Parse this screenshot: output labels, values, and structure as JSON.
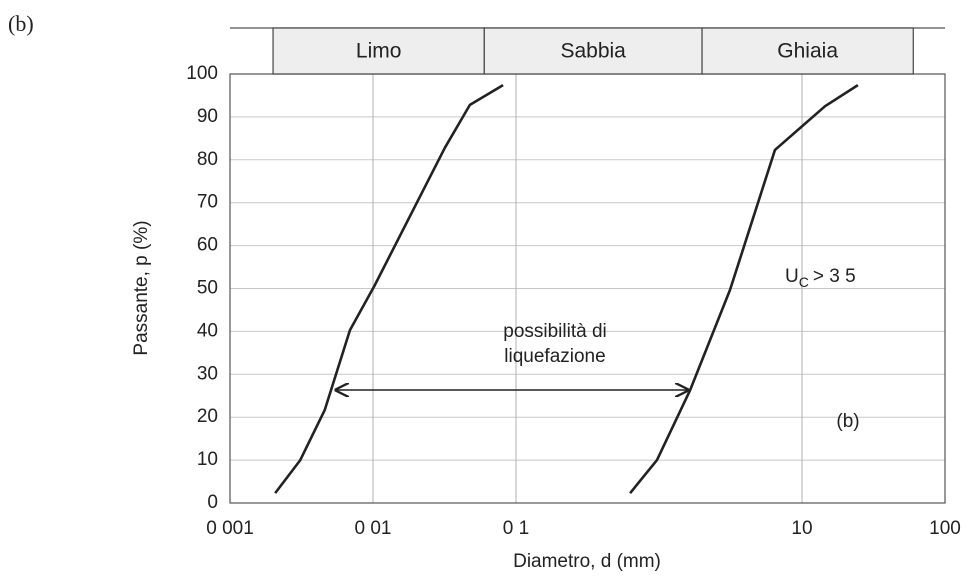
{
  "chart_data": {
    "type": "line",
    "title": "(b)",
    "xlabel": "Diametro, d (mm)",
    "ylabel": "Passante, p (%)",
    "log_x": true,
    "grid": true,
    "xlim": [
      0.001,
      100
    ],
    "ylim": [
      0,
      100
    ],
    "xticks": [
      {
        "value": 0.001,
        "label": "0 001"
      },
      {
        "value": 0.01,
        "label": "0 01"
      },
      {
        "value": 0.1,
        "label": "0 1"
      },
      10,
      100
    ],
    "yticks": [
      0,
      10,
      20,
      30,
      40,
      50,
      60,
      70,
      80,
      90,
      100
    ],
    "bands": [
      {
        "label": "Limo",
        "from": 0.002,
        "to": 0.06
      },
      {
        "label": "Sabbia",
        "from": 0.06,
        "to": 2
      },
      {
        "label": "Ghiaia",
        "from": 2,
        "to": 60
      }
    ],
    "series": [
      {
        "color": "#222222",
        "x": [
          0.00207,
          0.0031,
          0.0046,
          0.0069,
          0.0103,
          0.0318,
          0.0476,
          0.0812
        ],
        "values": [
          2.3,
          10,
          21.7,
          40.3,
          50.8,
          82.8,
          92.8,
          97.4
        ]
      },
      {
        "color": "#222222",
        "x": [
          0.628,
          0.968,
          1.65,
          3.14,
          6.47,
          14.5,
          24.6
        ],
        "values": [
          2.3,
          10,
          26.3,
          49.7,
          82.3,
          92.5,
          97.4
        ]
      }
    ],
    "annotations": [
      "possibilità di",
      "liquefazione",
      "> 3 5",
      "(b)"
    ],
    "uc_symbol": "U",
    "uc_subscript": "C"
  }
}
